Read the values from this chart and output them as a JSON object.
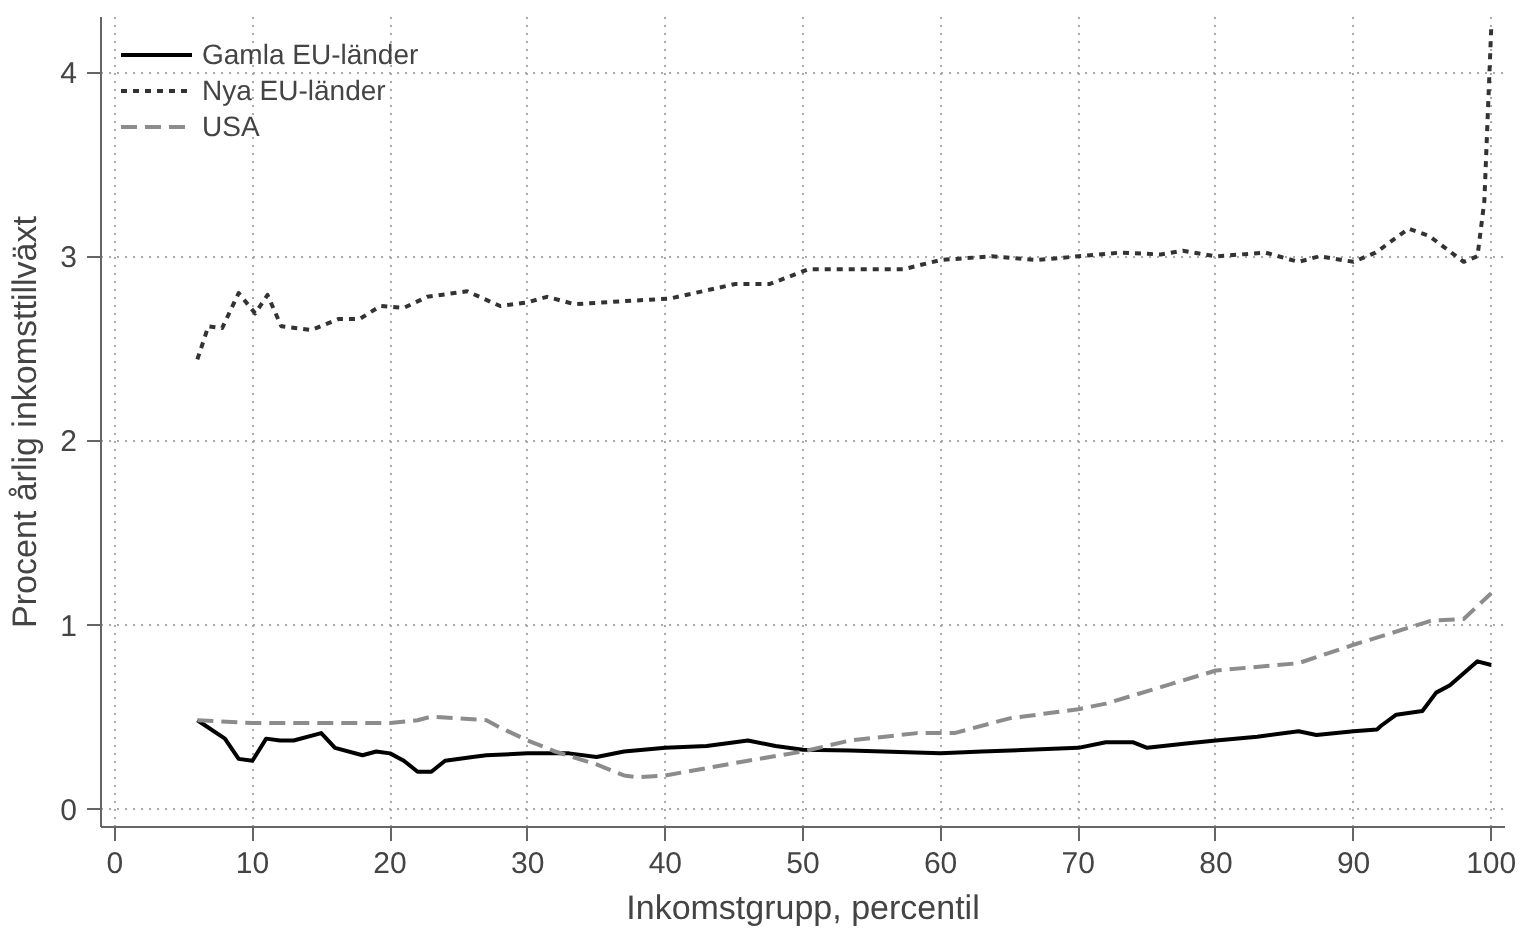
{
  "chart_data": {
    "type": "line",
    "xlabel": "Inkomstgrupp, percentil",
    "ylabel": "Procent årlig inkomsttillväxt",
    "xlim": [
      -1,
      101
    ],
    "ylim": [
      -0.1,
      4.3
    ],
    "xticks": [
      0,
      10,
      20,
      30,
      40,
      50,
      60,
      70,
      80,
      90,
      100
    ],
    "yticks": [
      0,
      1,
      2,
      3,
      4
    ],
    "grid": true,
    "legend": "top left",
    "series": [
      {
        "name": "Gamla EU-länder",
        "color": "#000000",
        "line_style": "solid",
        "x": [
          6,
          8,
          9,
          10,
          11,
          12,
          13,
          15,
          16,
          18,
          19,
          20,
          21,
          22,
          23,
          24,
          26,
          27,
          30,
          33,
          35,
          37,
          40,
          43,
          46,
          48,
          50,
          53.4,
          60,
          63,
          70,
          72,
          74,
          75,
          78,
          80,
          83,
          86,
          87.3,
          90,
          91.7,
          92,
          93.1,
          95,
          96,
          97,
          99,
          100
        ],
        "values": [
          0.48,
          0.38,
          0.27,
          0.26,
          0.38,
          0.37,
          0.37,
          0.41,
          0.33,
          0.29,
          0.31,
          0.3,
          0.26,
          0.2,
          0.2,
          0.26,
          0.28,
          0.29,
          0.3,
          0.3,
          0.28,
          0.31,
          0.33,
          0.34,
          0.37,
          0.34,
          0.32,
          0.315,
          0.3,
          0.31,
          0.33,
          0.36,
          0.36,
          0.33,
          0.355,
          0.37,
          0.39,
          0.42,
          0.4,
          0.42,
          0.43,
          0.45,
          0.51,
          0.53,
          0.63,
          0.67,
          0.8,
          0.78
        ]
      },
      {
        "name": "Nya EU-länder",
        "color": "#333333",
        "line_style": "dotted",
        "x": [
          6,
          6.8,
          7.8,
          9,
          10.2,
          11.1,
          12.1,
          14.3,
          16.3,
          17.8,
          19.3,
          21,
          22.7,
          25.6,
          28,
          30,
          31.4,
          33.4,
          37.8,
          40.3,
          42.7,
          45.1,
          47.6,
          50.4,
          53.4,
          57.3,
          60,
          63.7,
          67,
          70,
          73,
          76,
          77.6,
          80,
          83.6,
          86,
          87.5,
          90,
          91.6,
          94,
          95.5,
          98,
          99,
          99.5,
          100
        ],
        "values": [
          2.44,
          2.62,
          2.61,
          2.8,
          2.69,
          2.79,
          2.62,
          2.6,
          2.66,
          2.66,
          2.73,
          2.72,
          2.78,
          2.81,
          2.73,
          2.75,
          2.78,
          2.74,
          2.76,
          2.77,
          2.81,
          2.85,
          2.85,
          2.93,
          2.93,
          2.93,
          2.98,
          3.0,
          2.98,
          3.0,
          3.02,
          3.01,
          3.03,
          3.0,
          3.02,
          2.97,
          3.0,
          2.97,
          3.02,
          3.15,
          3.11,
          2.97,
          3.0,
          3.3,
          4.24
        ]
      },
      {
        "name": "USA",
        "color": "#8c8c8c",
        "line_style": "dashed",
        "x": [
          6,
          10,
          15,
          20,
          22,
          23,
          27,
          28,
          30,
          32,
          35,
          37,
          38,
          40,
          43,
          46,
          50,
          53.4,
          58.3,
          61,
          65,
          70,
          72,
          76,
          80,
          86,
          90,
          92.6,
          95.6,
          98,
          100
        ],
        "values": [
          0.48,
          0.465,
          0.465,
          0.465,
          0.48,
          0.5,
          0.48,
          0.44,
          0.37,
          0.31,
          0.24,
          0.18,
          0.17,
          0.18,
          0.22,
          0.26,
          0.31,
          0.37,
          0.41,
          0.41,
          0.49,
          0.54,
          0.57,
          0.66,
          0.75,
          0.79,
          0.89,
          0.95,
          1.02,
          1.03,
          1.17
        ]
      }
    ]
  }
}
